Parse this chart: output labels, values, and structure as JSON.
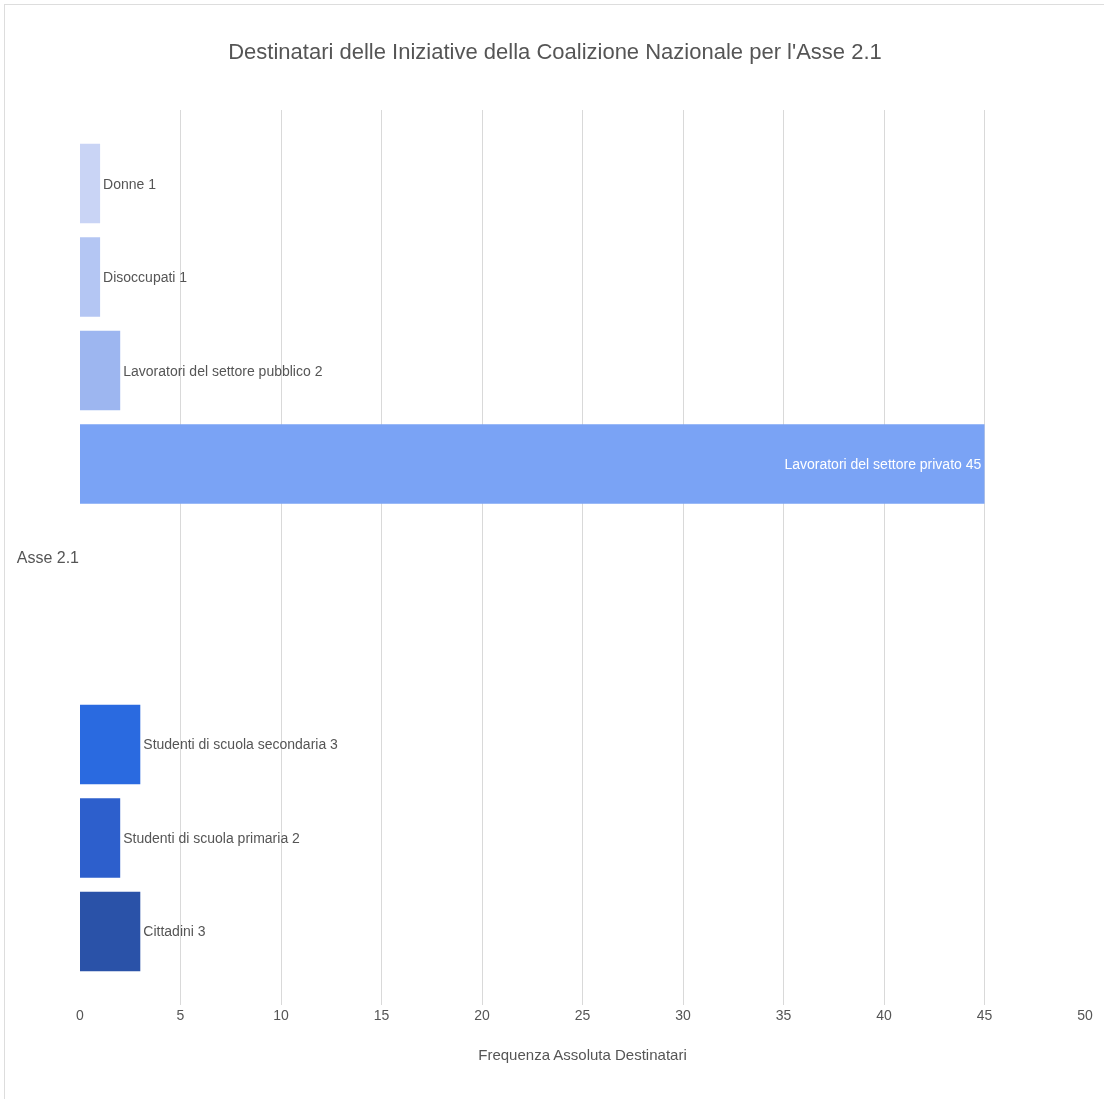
{
  "chart_data": {
    "type": "bar",
    "orientation": "horizontal",
    "title": "Destinatari delle Iniziative della Coalizione Nazionale per l'Asse 2.1",
    "xlabel": "Frequenza Assoluta Destinatari",
    "categories": [
      "Asse 2.1"
    ],
    "series": [
      {
        "color": "#c9d4f5",
        "values": [
          1
        ],
        "value_labels": [
          "Donne 1"
        ]
      },
      {
        "color": "#b4c6f3",
        "values": [
          1
        ],
        "value_labels": [
          "Disoccupati 1"
        ]
      },
      {
        "color": "#9db6f0",
        "values": [
          2
        ],
        "value_labels": [
          "Lavoratori del settore pubblico 2"
        ]
      },
      {
        "color": "#7aa3f5",
        "values": [
          45
        ],
        "value_labels": [
          "Lavoratori del settore privato 45"
        ]
      },
      {
        "color": "#5a8ae8",
        "values": [
          null
        ]
      },
      {
        "color": "#4a7ae4",
        "values": [
          null
        ]
      },
      {
        "color": "#2a6ae0",
        "values": [
          3
        ],
        "value_labels": [
          "Studenti di scuola secondaria 3"
        ]
      },
      {
        "color": "#2d5fcc",
        "values": [
          2
        ],
        "value_labels": [
          "Studenti di scuola primaria 2"
        ]
      },
      {
        "color": "#2a52a8",
        "values": [
          3
        ],
        "value_labels": [
          "Cittadini 3"
        ]
      }
    ],
    "xlim": [
      0,
      50
    ],
    "xticks": [
      0,
      5,
      10,
      15,
      20,
      25,
      30,
      35,
      40,
      45,
      50
    ],
    "grid": "x"
  }
}
